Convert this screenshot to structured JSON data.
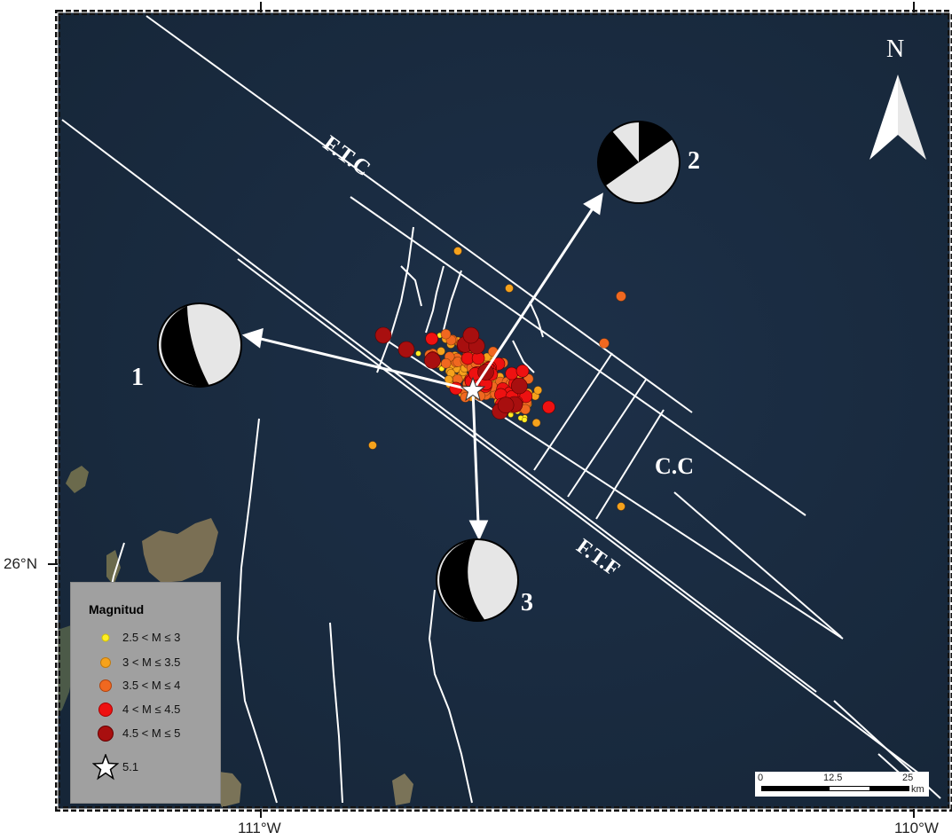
{
  "map": {
    "north_label": "N",
    "fault_labels": {
      "ftc": "F.T.C",
      "cc": "C.C",
      "ftf": "F.T.F"
    },
    "mechanisms": [
      {
        "label": "1"
      },
      {
        "label": "2"
      },
      {
        "label": "3"
      }
    ],
    "axes": {
      "lon_left": "111°W",
      "lon_right": "110°W",
      "lat": "26°N"
    }
  },
  "legend": {
    "title": "Magnitud",
    "items": [
      {
        "label": "2.5 < M ≤  3",
        "color": "#ffee22"
      },
      {
        "label": "3 < M ≤  3.5",
        "color": "#f5a21c"
      },
      {
        "label": "3.5 < M ≤  4",
        "color": "#f06820"
      },
      {
        "label": "4 < M ≤  4.5",
        "color": "#ee1111"
      },
      {
        "label": "4.5 < M ≤  5",
        "color": "#a80f0f"
      },
      {
        "label": "5.1",
        "symbol": "star"
      }
    ]
  },
  "scalebar": {
    "ticks": [
      "0",
      "12.5",
      "25"
    ],
    "unit": "km"
  }
}
